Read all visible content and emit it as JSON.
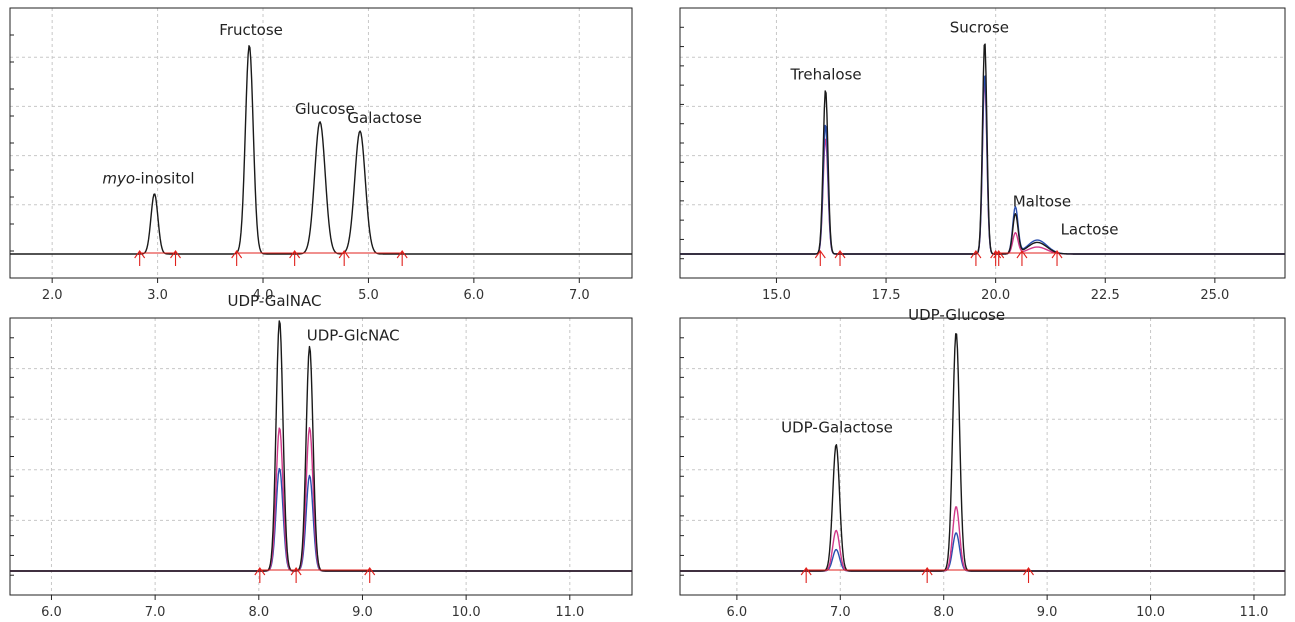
{
  "chart_data": [
    {
      "type": "line",
      "xlim": [
        1.6,
        7.5
      ],
      "ylim": [
        0,
        100
      ],
      "xticks": [
        "2.0",
        "3.0",
        "4.0",
        "5.0",
        "6.0",
        "7.0"
      ],
      "xtick_values": [
        2.0,
        3.0,
        4.0,
        5.0,
        6.0,
        7.0
      ],
      "ytick_count": 10,
      "grid": true,
      "series": [
        {
          "color": "#1a1a1a",
          "baseline": 0,
          "peaks": [
            [
              2.97,
              26,
              0.033
            ],
            [
              3.87,
              90,
              0.037
            ],
            [
              4.54,
              57,
              0.05
            ],
            [
              4.92,
              53,
              0.05
            ]
          ]
        }
      ],
      "annotations": [
        {
          "text_italic": "myo",
          "text": "-inositol",
          "x": 2.97,
          "y": 26
        },
        {
          "text": "Fructose",
          "x": 3.87,
          "y": 90
        },
        {
          "text": "Glucose",
          "x": 4.54,
          "y": 57
        },
        {
          "text": "Galactose",
          "x": 4.99,
          "y": 53
        }
      ],
      "integration_markers": [
        2.83,
        3.17,
        3.75,
        4.3,
        4.77,
        5.32
      ],
      "baseline_segments": [
        [
          2.83,
          3.17
        ],
        [
          3.75,
          5.32
        ]
      ]
    },
    {
      "type": "line",
      "xlim": [
        12.8,
        26.6
      ],
      "ylim": [
        0,
        100
      ],
      "xticks": [
        "15.0",
        "17.5",
        "20.0",
        "22.5",
        "25.0"
      ],
      "xtick_values": [
        15.0,
        17.5,
        20.0,
        22.5,
        25.0
      ],
      "ytick_count": 14,
      "grid": true,
      "series": [
        {
          "color": "#d13a8a",
          "baseline": 0,
          "peaks": [
            [
              16.12,
              50,
              0.055
            ],
            [
              19.75,
              75,
              0.05
            ],
            [
              20.45,
              9,
              0.06
            ],
            [
              20.95,
              3,
              0.22
            ]
          ]
        },
        {
          "color": "#2a4fb0",
          "baseline": 0,
          "peaks": [
            [
              16.12,
              56,
              0.055
            ],
            [
              19.75,
              78,
              0.05
            ],
            [
              20.45,
              20,
              0.06
            ],
            [
              20.95,
              6,
              0.22
            ]
          ]
        },
        {
          "color": "#1a1a1a",
          "baseline": 0,
          "peaks": [
            [
              16.12,
              71,
              0.055
            ],
            [
              19.75,
              92,
              0.05
            ],
            [
              20.45,
              17,
              0.06
            ],
            [
              20.95,
              5,
              0.22
            ]
          ]
        }
      ],
      "annotations": [
        {
          "text": "Trehalose",
          "x": 16.12,
          "y": 71
        },
        {
          "text": "Sucrose",
          "x": 19.75,
          "y": 92
        },
        {
          "text": "Maltose",
          "x": 20.8,
          "y": 17
        },
        {
          "text": "Lactose",
          "x": 21.8,
          "y": 5
        }
      ],
      "integration_markers": [
        16.0,
        16.45,
        19.55,
        20.0,
        20.07,
        20.6,
        21.4
      ],
      "baseline_segments": [
        [
          20.0,
          21.4
        ]
      ]
    },
    {
      "type": "line",
      "xlim": [
        5.6,
        11.6
      ],
      "ylim": [
        0,
        100
      ],
      "xticks": [
        "6.0",
        "7.0",
        "8.0",
        "9.0",
        "10.0",
        "11.0"
      ],
      "xtick_values": [
        6.0,
        7.0,
        8.0,
        9.0,
        10.0,
        11.0
      ],
      "ytick_count": 14,
      "grid": true,
      "series": [
        {
          "color": "#2a4fb0",
          "baseline": 0,
          "peaks": [
            [
              8.2,
              43,
              0.033
            ],
            [
              8.49,
              40,
              0.033
            ]
          ]
        },
        {
          "color": "#d13a8a",
          "baseline": 0,
          "peaks": [
            [
              8.2,
              60,
              0.033
            ],
            [
              8.49,
              60,
              0.033
            ]
          ]
        },
        {
          "color": "#1a1a1a",
          "baseline": 0,
          "peaks": [
            [
              8.2,
              105,
              0.033
            ],
            [
              8.49,
              94,
              0.033
            ]
          ]
        }
      ],
      "annotations": [
        {
          "text": "UDP-GalNAC",
          "x": 8.2,
          "y": 105
        },
        {
          "text": "UDP-GlcNAC",
          "x": 8.8,
          "y": 94
        }
      ],
      "integration_markers": [
        8.01,
        8.36,
        9.07
      ],
      "baseline_segments": [
        [
          8.01,
          9.07
        ]
      ]
    },
    {
      "type": "line",
      "xlim": [
        5.45,
        11.3
      ],
      "ylim": [
        0,
        100
      ],
      "xticks": [
        "6.0",
        "7.0",
        "8.0",
        "9.0",
        "10.0",
        "11.0"
      ],
      "xtick_values": [
        6.0,
        7.0,
        8.0,
        9.0,
        10.0,
        11.0
      ],
      "ytick_count": 14,
      "grid": true,
      "series": [
        {
          "color": "#2a4fb0",
          "baseline": 0,
          "peaks": [
            [
              6.96,
              9,
              0.033
            ],
            [
              8.12,
              16,
              0.033
            ]
          ]
        },
        {
          "color": "#d13a8a",
          "baseline": 0,
          "peaks": [
            [
              6.96,
              17,
              0.033
            ],
            [
              8.12,
              27,
              0.033
            ]
          ]
        },
        {
          "color": "#1a1a1a",
          "baseline": 0,
          "peaks": [
            [
              6.96,
              53,
              0.033
            ],
            [
              8.12,
              100,
              0.033
            ]
          ]
        }
      ],
      "annotations": [
        {
          "text": "UDP-Galactose",
          "x": 6.96,
          "y": 53
        },
        {
          "text": "UDP-Glucose",
          "x": 8.12,
          "y": 100
        }
      ],
      "integration_markers": [
        6.67,
        7.84,
        8.82
      ],
      "baseline_segments": [
        [
          6.67,
          8.82
        ]
      ]
    }
  ]
}
